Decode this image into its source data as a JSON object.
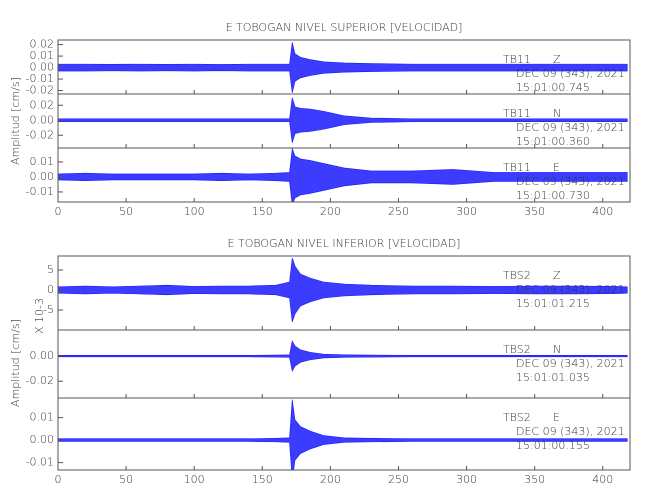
{
  "chart_data": [
    {
      "type": "area",
      "title": "E TOBOGAN NIVEL SUPERIOR [VELOCIDAD]",
      "y_label": "Amplitud [cm/s]",
      "xlim": [
        0,
        420
      ],
      "xticks": [
        0,
        50,
        100,
        150,
        200,
        250,
        300,
        350,
        400
      ],
      "x": [
        0,
        20,
        40,
        60,
        80,
        100,
        120,
        140,
        160,
        170,
        172,
        174,
        178,
        185,
        195,
        210,
        230,
        260,
        290,
        320,
        350,
        380,
        410,
        418
      ],
      "panels": [
        {
          "ylim": [
            -0.023,
            0.024
          ],
          "color": "#1a1aff",
          "yticks": [
            {
              "value": 0.02,
              "label": "0.02"
            },
            {
              "value": 0.01,
              "label": "0.01"
            },
            {
              "value": 0,
              "label": "0.00"
            },
            {
              "value": -0.01,
              "label": "-0.01"
            },
            {
              "value": -0.02,
              "label": "-0.02"
            }
          ],
          "values": [
            0.003,
            0.003,
            0.0028,
            0.003,
            0.0028,
            0.003,
            0.0027,
            0.003,
            0.003,
            0.003,
            0.022,
            0.012,
            0.009,
            0.007,
            0.005,
            0.004,
            0.0035,
            0.003,
            0.003,
            0.003,
            0.003,
            0.003,
            0.003,
            0.003
          ],
          "station": "TB11",
          "component": "Z",
          "date": "DEC 09 (343), 2021",
          "time": "15:01:00.745"
        },
        {
          "ylim": [
            -0.037,
            0.035
          ],
          "color": "#1a1aff",
          "yticks": [
            {
              "value": 0.02,
              "label": "0.02"
            },
            {
              "value": 0,
              "label": "0.00"
            },
            {
              "value": -0.02,
              "label": "-0.02"
            }
          ],
          "values": [
            0.002,
            0.002,
            0.002,
            0.002,
            0.002,
            0.002,
            0.002,
            0.002,
            0.002,
            0.002,
            0.03,
            0.018,
            0.016,
            0.015,
            0.012,
            0.006,
            0.003,
            0.002,
            0.002,
            0.002,
            0.002,
            0.002,
            0.002,
            0.002
          ],
          "station": "TB11",
          "component": "N",
          "date": "DEC 09 (343), 2021",
          "time": "15:01:00.360"
        },
        {
          "ylim": [
            -0.0167,
            0.0193
          ],
          "color": "#1a1aff",
          "yticks": [
            {
              "value": 0.01,
              "label": "0.01"
            },
            {
              "value": 0,
              "label": "0.00"
            },
            {
              "value": -0.01,
              "label": "-0.01"
            }
          ],
          "values": [
            0.002,
            0.0025,
            0.002,
            0.002,
            0.002,
            0.002,
            0.0025,
            0.002,
            0.0025,
            0.003,
            0.019,
            0.014,
            0.012,
            0.011,
            0.009,
            0.006,
            0.004,
            0.004,
            0.005,
            0.003,
            0.003,
            0.003,
            0.003,
            0.003
          ],
          "station": "TB11",
          "component": "E",
          "date": "DEC 09 (343), 2021",
          "time": "15:01:00.730"
        }
      ]
    },
    {
      "type": "area",
      "title": "E TOBOGAN NIVEL INFERIOR [VELOCIDAD]",
      "y_label": "Amplitud [cm/s]",
      "xlim": [
        0,
        420
      ],
      "xticks": [
        0,
        50,
        100,
        150,
        200,
        250,
        300,
        350,
        400
      ],
      "x": [
        0,
        20,
        40,
        60,
        80,
        100,
        120,
        140,
        160,
        170,
        172,
        174,
        178,
        185,
        195,
        210,
        230,
        260,
        290,
        320,
        350,
        380,
        410,
        418
      ],
      "panels": [
        {
          "ylim": [
            -10,
            8.5
          ],
          "color": "#1a1aff",
          "multiplier": "X 10-3",
          "yticks": [
            5,
            0,
            -5
          ],
          "values": [
            0.8,
            1,
            0.8,
            1,
            1.2,
            0.9,
            1,
            1,
            1.2,
            2,
            8,
            6,
            4,
            3,
            2,
            1.5,
            1.2,
            1,
            1,
            0.9,
            1,
            1,
            0.9,
            0.8
          ],
          "station": "TBS2",
          "component": "Z",
          "date": "DEC 09 (343), 2021",
          "time": "15:01:01.215"
        },
        {
          "ylim": [
            -0.0334,
            0.0208
          ],
          "color": "#1a1aff",
          "yticks": [
            {
              "value": 0,
              "label": "0.00"
            },
            {
              "value": -0.02,
              "label": "-0.02"
            }
          ],
          "values": [
            0.0006,
            0.0006,
            0.0006,
            0.0006,
            0.0006,
            0.0006,
            0.0006,
            0.0006,
            0.0008,
            0.001,
            0.012,
            0.008,
            0.005,
            0.003,
            0.0015,
            0.001,
            0.0008,
            0.0006,
            0.0006,
            0.0006,
            0.0006,
            0.0006,
            0.0006,
            0.0006
          ],
          "station": "TBS2",
          "component": "N",
          "date": "DEC 09 (343), 2021",
          "time": "15:01:01.035"
        },
        {
          "ylim": [
            -0.0133,
            0.0187
          ],
          "color": "#1a1aff",
          "yticks": [
            {
              "value": 0.01,
              "label": "0.01"
            },
            {
              "value": 0,
              "label": "0.00"
            },
            {
              "value": -0.01,
              "label": "-0.01"
            }
          ],
          "values": [
            0.0006,
            0.0006,
            0.0006,
            0.0006,
            0.0006,
            0.0006,
            0.0006,
            0.0006,
            0.0008,
            0.001,
            0.018,
            0.009,
            0.006,
            0.004,
            0.002,
            0.001,
            0.0008,
            0.0006,
            0.0006,
            0.0006,
            0.0006,
            0.0006,
            0.0006,
            0.0006
          ],
          "station": "TBS2",
          "component": "E",
          "date": "DEC 09 (343), 2021",
          "time": "15:01:00.155"
        }
      ]
    }
  ]
}
